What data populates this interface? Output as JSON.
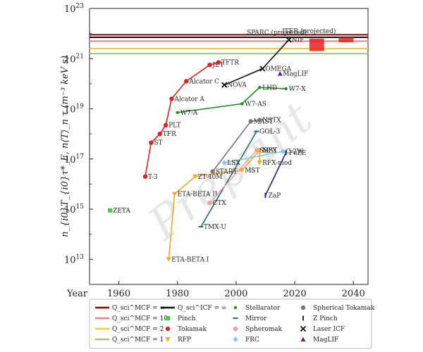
{
  "chart_data": {
    "type": "scatter",
    "title": "",
    "xlabel": "Year",
    "ylabel": "n_{i0}T_{i0}τ*_E,  n⟨T⟩_n τ  (m⁻³ keV s)",
    "xlim": [
      1950,
      2045
    ],
    "ylim_log10": [
      12,
      23
    ],
    "y_scale": "log",
    "x_ticks": [
      "1960",
      "1980",
      "2000",
      "2020",
      "2040"
    ],
    "y_ticks": [
      {
        "exp": 13,
        "label": "10",
        "sup": "13"
      },
      {
        "exp": 15,
        "label": "10",
        "sup": "15"
      },
      {
        "exp": 17,
        "label": "10",
        "sup": "17"
      },
      {
        "exp": 19,
        "label": "10",
        "sup": "19"
      },
      {
        "exp": 21,
        "label": "10",
        "sup": "21"
      },
      {
        "exp": 23,
        "label": "10",
        "sup": "23"
      }
    ],
    "grid": false,
    "watermark": "Preprint",
    "hlines": [
      {
        "name": "Q_sci^MCF = ∞",
        "log10_y": 21.95,
        "color": "#8b0000"
      },
      {
        "name": "Q_sci^MCF = 10",
        "log10_y": 21.7,
        "color": "#f08080"
      },
      {
        "name": "Q_sci^MCF = 2",
        "log10_y": 21.4,
        "color": "#f5c842"
      },
      {
        "name": "Q_sci^MCF = 1",
        "log10_y": 21.2,
        "color": "#a0c878"
      },
      {
        "name": "Q_sci^ICF = ∞",
        "log10_y": 21.85,
        "color": "#111111"
      }
    ],
    "boxes": [
      {
        "name": "SPARC (projected)",
        "x": [
          2025,
          2030
        ],
        "log10_y": [
          21.3,
          21.8
        ],
        "color": "#e82020"
      },
      {
        "name": "ITER (projected)",
        "x": [
          2035,
          2040
        ],
        "log10_y": [
          21.65,
          21.85
        ],
        "color": "#e82020"
      }
    ],
    "series": [
      {
        "name": "Pinch",
        "color": "#44cc44",
        "marker": "square",
        "points": [
          {
            "x": 1957,
            "log10_y": 14.95,
            "label": "ZETA"
          }
        ]
      },
      {
        "name": "Tokamak",
        "color": "#dd2222",
        "marker": "circle",
        "points": [
          {
            "x": 1969,
            "log10_y": 16.3,
            "label": "T-3"
          },
          {
            "x": 1971,
            "log10_y": 17.65,
            "label": "ST"
          },
          {
            "x": 1974,
            "log10_y": 18.0,
            "label": "TFR"
          },
          {
            "x": 1976,
            "log10_y": 18.35,
            "label": "PLT"
          },
          {
            "x": 1978,
            "log10_y": 19.4,
            "label": "Alcator A"
          },
          {
            "x": 1983,
            "log10_y": 20.1,
            "label": "Alcator C"
          },
          {
            "x": 1991,
            "log10_y": 20.75,
            "label": "JET"
          },
          {
            "x": 1994,
            "log10_y": 20.85,
            "label": "TFTR"
          }
        ]
      },
      {
        "name": "RFP",
        "color": "#f5a623",
        "marker": "triangle-down",
        "points": [
          {
            "x": 1977,
            "log10_y": 13.0,
            "label": "ETA-BETA I"
          },
          {
            "x": 1979,
            "log10_y": 15.6,
            "label": "ETA-BETA II"
          },
          {
            "x": 1986,
            "log10_y": 16.3,
            "label": "ZT-40M"
          },
          {
            "x": 2002,
            "log10_y": 16.55,
            "label": "MST"
          },
          {
            "x": 2008,
            "log10_y": 17.35,
            "label": "MST"
          },
          {
            "x": 2008,
            "log10_y": 16.85,
            "label": "RFX-mod"
          }
        ]
      },
      {
        "name": "Stellarator",
        "color": "#228822",
        "marker": "dot",
        "points": [
          {
            "x": 1980,
            "log10_y": 18.85,
            "label": "W7-A"
          },
          {
            "x": 2002,
            "log10_y": 19.2,
            "label": "W7-AS"
          },
          {
            "x": 2008,
            "log10_y": 19.85,
            "label": "LHD"
          },
          {
            "x": 2017,
            "log10_y": 19.8,
            "label": "W7-X"
          }
        ]
      },
      {
        "name": "Mirror",
        "color": "#1f6f6f",
        "marker": "dash",
        "points": [
          {
            "x": 1988,
            "log10_y": 14.3,
            "label": "TMX-U"
          },
          {
            "x": 2007,
            "log10_y": 18.1,
            "label": "GOL-3"
          }
        ]
      },
      {
        "name": "Spheromak",
        "color": "#f0a0a0",
        "marker": "circle",
        "points": [
          {
            "x": 1991,
            "log10_y": 15.25,
            "label": "CTX"
          },
          {
            "x": 2007,
            "log10_y": 17.35,
            "label": "SSPX"
          }
        ]
      },
      {
        "name": "FRC",
        "color": "#88c8e0",
        "marker": "diamond",
        "points": [
          {
            "x": 1996,
            "log10_y": 16.85,
            "label": "LSX"
          },
          {
            "x": 2016,
            "log10_y": 17.3,
            "label": "C-2W"
          }
        ]
      },
      {
        "name": "Spherical Tokamak",
        "color": "#777777",
        "marker": "circle",
        "points": [
          {
            "x": 1992,
            "log10_y": 16.5,
            "label": "START"
          },
          {
            "x": 2005,
            "log10_y": 18.5,
            "label": "MAST"
          },
          {
            "x": 2008,
            "log10_y": 18.55,
            "label": "NSTX"
          }
        ]
      },
      {
        "name": "Z Pinch",
        "color": "#1a237e",
        "marker": "vbar",
        "points": [
          {
            "x": 2010,
            "log10_y": 15.55,
            "label": "ZaP"
          },
          {
            "x": 2017,
            "log10_y": 17.25,
            "label": "FuZE"
          }
        ]
      },
      {
        "name": "Laser ICF",
        "color": "#111111",
        "marker": "x",
        "points": [
          {
            "x": 1996,
            "log10_y": 19.95,
            "label": "NOVA"
          },
          {
            "x": 2009,
            "log10_y": 20.6,
            "label": "OMEGA"
          },
          {
            "x": 2018,
            "log10_y": 21.75,
            "label": "NIF"
          }
        ]
      },
      {
        "name": "MagLIF",
        "color": "#5522aa",
        "marker": "triangle-up",
        "points": [
          {
            "x": 2015,
            "log10_y": 20.4,
            "label": "MagLIF"
          }
        ]
      }
    ]
  },
  "legend": [
    {
      "label": "Q_sci^MCF = ∞",
      "color": "#8b0000",
      "kind": "line"
    },
    {
      "label": "Q_sci^ICF = ∞",
      "color": "#111111",
      "kind": "line"
    },
    {
      "label": "Stellarator",
      "color": "#228822",
      "kind": "dot"
    },
    {
      "label": "Spherical Tokamak",
      "color": "#777777",
      "kind": "circle"
    },
    {
      "label": "Q_sci^MCF = 10",
      "color": "#f08080",
      "kind": "line"
    },
    {
      "label": "Pinch",
      "color": "#44cc44",
      "kind": "square"
    },
    {
      "label": "Mirror",
      "color": "#1f6f6f",
      "kind": "dash"
    },
    {
      "label": "Z Pinch",
      "color": "#1a237e",
      "kind": "vbar"
    },
    {
      "label": "Q_sci^MCF = 2",
      "color": "#f5c842",
      "kind": "line"
    },
    {
      "label": "Tokamak",
      "color": "#dd2222",
      "kind": "circle"
    },
    {
      "label": "Spheromak",
      "color": "#f0a0a0",
      "kind": "circle"
    },
    {
      "label": "Laser ICF",
      "color": "#111111",
      "kind": "x"
    },
    {
      "label": "Q_sci^MCF = 1",
      "color": "#a0c878",
      "kind": "line"
    },
    {
      "label": "RFP",
      "color": "#f5a623",
      "kind": "triangle-down"
    },
    {
      "label": "FRC",
      "color": "#88c8e0",
      "kind": "diamond"
    },
    {
      "label": "MagLIF",
      "color": "#5522aa",
      "kind": "triangle-up"
    }
  ]
}
